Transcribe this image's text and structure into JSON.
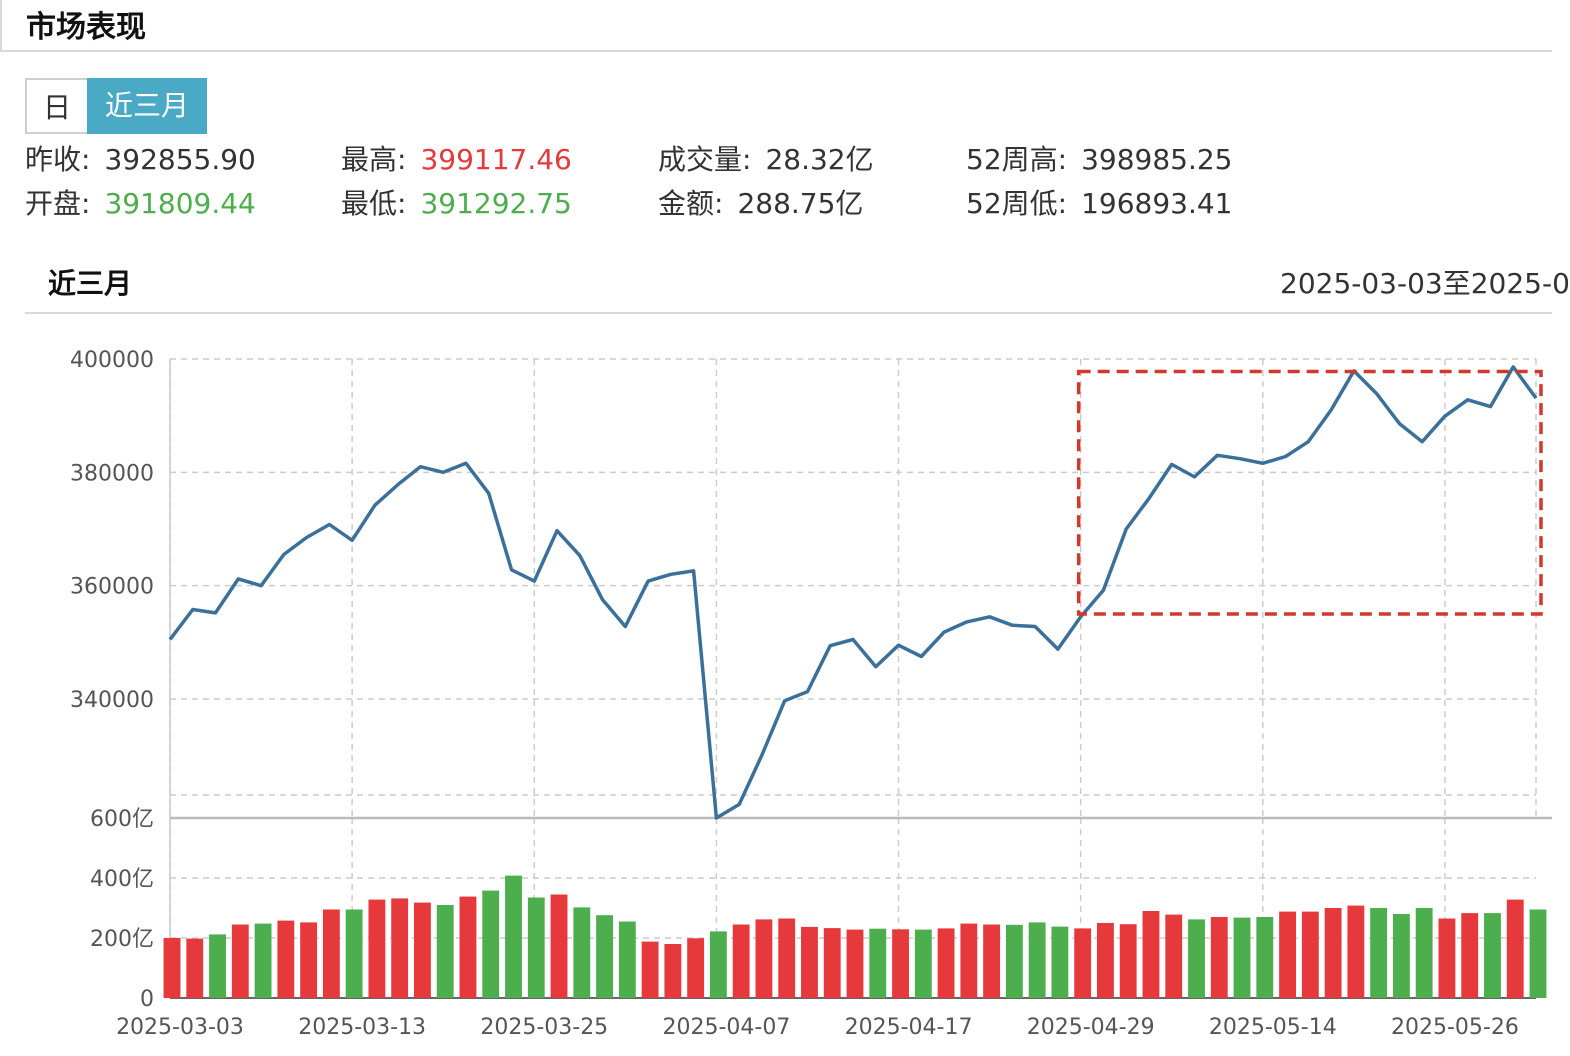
{
  "header": {
    "title": "市场表现"
  },
  "tabs": [
    {
      "label": "日",
      "active": false
    },
    {
      "label": "近三月",
      "active": true
    }
  ],
  "stats": {
    "prev_close": {
      "label": "昨收:",
      "value": "392855.90"
    },
    "open": {
      "label": "开盘:",
      "value": "391809.44"
    },
    "high": {
      "label": "最高:",
      "value": "399117.46"
    },
    "low": {
      "label": "最低:",
      "value": "391292.75"
    },
    "volume": {
      "label": "成交量:",
      "value": "28.32亿"
    },
    "amount": {
      "label": "金额:",
      "value": "288.75亿"
    },
    "week52_high": {
      "label": "52周高:",
      "value": "398985.25"
    },
    "week52_low": {
      "label": "52周低:",
      "value": "196893.41"
    }
  },
  "section": {
    "title": "近三月",
    "date_range": "2025-03-03至2025-0"
  },
  "colors": {
    "line": "#3a7099",
    "up": "#e5393c",
    "down": "#4cae4c",
    "highlight": "#d0392b",
    "tab_active": "#4aa9c5"
  },
  "chart_data": [
    {
      "type": "line",
      "ylim": [
        319000,
        400000
      ],
      "yticks": [
        "400000",
        "380000",
        "360000",
        "340000"
      ],
      "ytick_values": [
        400000,
        380000,
        360000,
        340000
      ],
      "x_ticks": [
        "2025-03-03",
        "2025-03-13",
        "2025-03-25",
        "2025-04-07",
        "2025-04-17",
        "2025-04-29",
        "2025-05-14",
        "2025-05-26"
      ],
      "x_tick_index": [
        0,
        8,
        16,
        24,
        32,
        40,
        48,
        56
      ],
      "values": [
        350500,
        355800,
        355200,
        361200,
        360000,
        365500,
        368500,
        370800,
        368000,
        374200,
        377800,
        381000,
        380000,
        381600,
        376300,
        362800,
        360800,
        369700,
        365300,
        357500,
        352800,
        360800,
        362000,
        362600,
        319000,
        321400,
        330100,
        339700,
        341300,
        349400,
        350500,
        345700,
        349500,
        347500,
        351800,
        353600,
        354500,
        353000,
        352800,
        348800,
        354500,
        359200,
        370000,
        375400,
        381400,
        379200,
        383000,
        382400,
        381600,
        382800,
        385400,
        391000,
        397900,
        393900,
        388600,
        385400,
        389900,
        392800,
        391600,
        398600,
        393100
      ],
      "highlight": {
        "from_index": 40,
        "to_index": 60,
        "ylim": [
          355000,
          397800
        ]
      }
    },
    {
      "type": "bar",
      "unit": "亿",
      "ylim": [
        0,
        600
      ],
      "yticks": [
        "600亿",
        "400亿",
        "200亿",
        "0"
      ],
      "ytick_values": [
        600,
        400,
        200,
        0
      ],
      "values": [
        200,
        198,
        212,
        245,
        248,
        258,
        252,
        295,
        295,
        328,
        332,
        318,
        310,
        338,
        358,
        408,
        335,
        345,
        302,
        276,
        255,
        188,
        180,
        199,
        222,
        245,
        262,
        265,
        237,
        233,
        228,
        231,
        229,
        228,
        232,
        248,
        245,
        244,
        252,
        238,
        232,
        250,
        246,
        290,
        278,
        262,
        270,
        268,
        270,
        288,
        288,
        300,
        308,
        300,
        280,
        300,
        265,
        283,
        283,
        328,
        295
      ],
      "colors": [
        "up",
        "up",
        "down",
        "up",
        "down",
        "up",
        "up",
        "up",
        "down",
        "up",
        "up",
        "up",
        "down",
        "up",
        "down",
        "down",
        "down",
        "up",
        "down",
        "down",
        "down",
        "up",
        "up",
        "up",
        "down",
        "up",
        "up",
        "up",
        "up",
        "up",
        "up",
        "down",
        "up",
        "down",
        "up",
        "up",
        "up",
        "down",
        "down",
        "down",
        "up",
        "up",
        "up",
        "up",
        "up",
        "down",
        "up",
        "down",
        "down",
        "up",
        "up",
        "up",
        "up",
        "down",
        "down",
        "down",
        "up",
        "up",
        "down",
        "up",
        "down"
      ]
    }
  ]
}
